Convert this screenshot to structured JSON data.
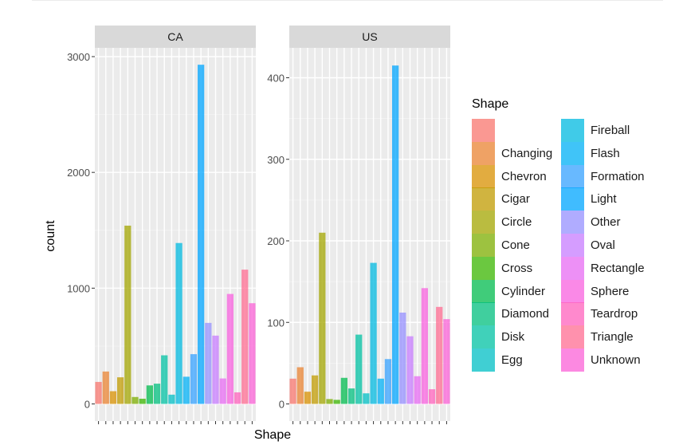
{
  "chart_data": {
    "type": "bar",
    "facet_by": "country",
    "categories": [
      "",
      "Changing",
      "Chevron",
      "Cigar",
      "Circle",
      "Cone",
      "Cross",
      "Cylinder",
      "Diamond",
      "Disk",
      "Egg",
      "Fireball",
      "Flash",
      "Formation",
      "Light",
      "Other",
      "Oval",
      "Rectangle",
      "Sphere",
      "Teardrop",
      "Triangle",
      "Unknown"
    ],
    "colors": [
      "#F8766D",
      "#EA8331",
      "#D89000",
      "#C09B00",
      "#A3A500",
      "#7CAE00",
      "#39B600",
      "#00BB4E",
      "#00BF7D",
      "#00C1A3",
      "#00BFC4",
      "#00BAE0",
      "#00B0F6",
      "#35A2FF",
      "#00A5FF",
      "#9590FF",
      "#C77CFF",
      "#E76BF3",
      "#F862DF",
      "#FF62BC",
      "#FF6C91",
      "#FB61D7"
    ],
    "panels": [
      {
        "strip": "CA",
        "ylim": [
          0,
          3200
        ],
        "yticks": [
          0,
          1000,
          2000,
          3000
        ],
        "values": [
          190,
          280,
          110,
          230,
          1540,
          60,
          45,
          160,
          175,
          420,
          80,
          1390,
          235,
          430,
          2930,
          700,
          590,
          220,
          950,
          100,
          1160,
          870
        ]
      },
      {
        "strip": "US",
        "ylim": [
          0,
          435
        ],
        "yticks": [
          0,
          100,
          200,
          300,
          400
        ],
        "values": [
          31,
          45,
          15,
          35,
          210,
          6,
          5,
          32,
          19,
          85,
          13,
          173,
          31,
          55,
          415,
          112,
          83,
          34,
          142,
          18,
          119,
          104
        ]
      }
    ],
    "xlabel": "Shape",
    "ylabel": "count",
    "legend_title": "Shape",
    "legend_position": "right"
  }
}
